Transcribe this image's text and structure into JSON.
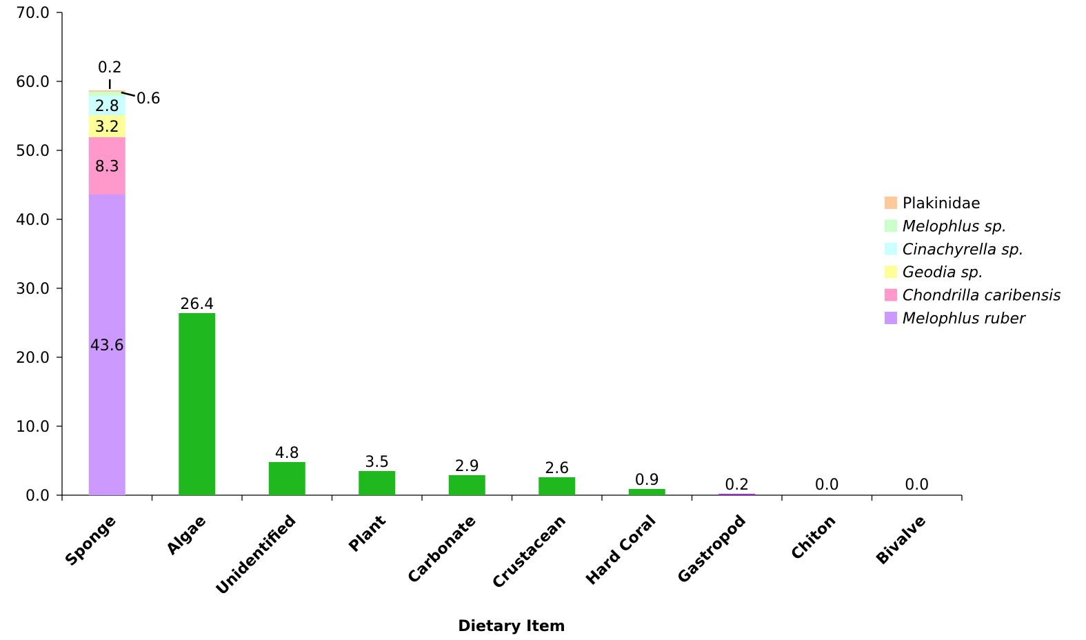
{
  "chart_data": {
    "type": "bar",
    "xlabel": "Dietary Item",
    "ylabel": "",
    "ylim": [
      0,
      70
    ],
    "yticks": [
      "0.0",
      "10.0",
      "20.0",
      "30.0",
      "40.0",
      "50.0",
      "60.0",
      "70.0"
    ],
    "grid": false,
    "legend_position": "right",
    "categories": [
      "Sponge",
      "Algae",
      "Unidentified",
      "Plant",
      "Carbonate",
      "Crustacean",
      "Hard Coral",
      "Gastropod",
      "Chiton",
      "Bivalve"
    ],
    "bars": [
      {
        "category": "Sponge",
        "label": "",
        "stack": [
          {
            "series": "Melophlus ruber",
            "value": 43.6,
            "label": "43.6"
          },
          {
            "series": "Chondrilla caribensis",
            "value": 8.3,
            "label": "8.3"
          },
          {
            "series": "Geodia sp.",
            "value": 3.2,
            "label": "3.2"
          },
          {
            "series": "Cinachyrella sp.",
            "value": 2.8,
            "label": "2.8"
          },
          {
            "series": "Melophlus sp.",
            "value": 0.6,
            "label": "0.6"
          },
          {
            "series": "Plakinidae",
            "value": 0.2,
            "label": "0.2"
          }
        ]
      },
      {
        "category": "Algae",
        "value": 26.4,
        "label": "26.4",
        "color": "#1fb81f"
      },
      {
        "category": "Unidentified",
        "value": 4.8,
        "label": "4.8",
        "color": "#1fb81f"
      },
      {
        "category": "Plant",
        "value": 3.5,
        "label": "3.5",
        "color": "#1fb81f"
      },
      {
        "category": "Carbonate",
        "value": 2.9,
        "label": "2.9",
        "color": "#1fb81f"
      },
      {
        "category": "Crustacean",
        "value": 2.6,
        "label": "2.6",
        "color": "#1fb81f"
      },
      {
        "category": "Hard Coral",
        "value": 0.9,
        "label": "0.9",
        "color": "#1fb81f"
      },
      {
        "category": "Gastropod",
        "value": 0.2,
        "label": "0.2",
        "color": "#9933cc"
      },
      {
        "category": "Chiton",
        "value": 0.0,
        "label": "0.0",
        "color": "#1fb81f"
      },
      {
        "category": "Bivalve",
        "value": 0.0,
        "label": "0.0",
        "color": "#1fb81f"
      }
    ],
    "legend": [
      {
        "name": "Plakinidae",
        "color": "#ffc999",
        "italic": false
      },
      {
        "name": "Melophlus sp.",
        "color": "#ccffcc",
        "italic": true
      },
      {
        "name": "Cinachyrella sp.",
        "color": "#ccffff",
        "italic": true
      },
      {
        "name": "Geodia sp.",
        "color": "#ffff99",
        "italic": true
      },
      {
        "name": "Chondrilla caribensis",
        "color": "#ff99cc",
        "italic": true
      },
      {
        "name": "Melophlus ruber",
        "color": "#cc99ff",
        "italic": true
      }
    ]
  }
}
